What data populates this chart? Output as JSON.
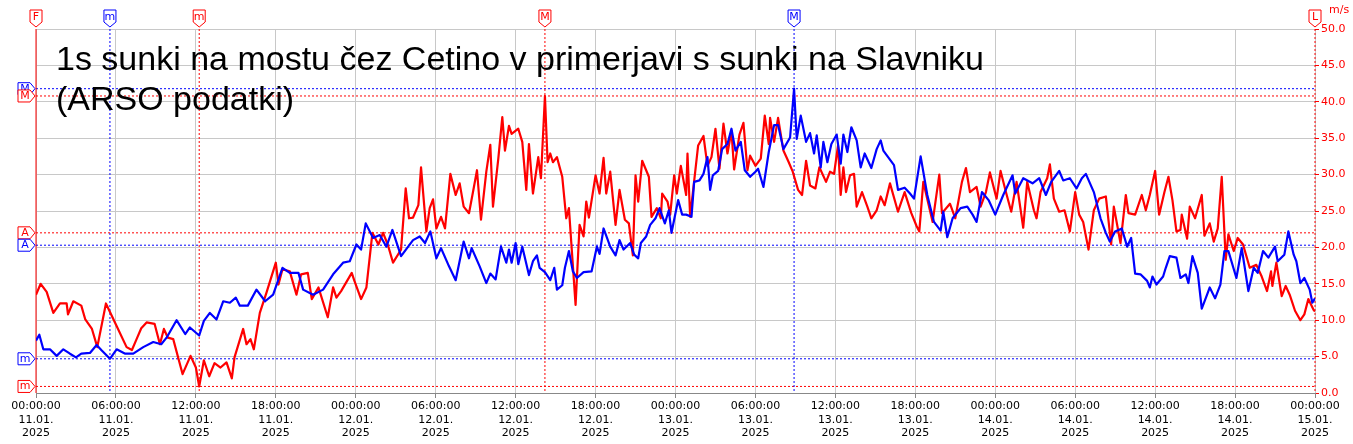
{
  "chart_data": {
    "type": "line",
    "title": "1s sunki na mostu čez Cetino v primerjavi s sunki na Slavniku (ARSO podatki)",
    "ylabel": "m/s",
    "xlim": [
      "2025-01-11T00:00",
      "2025-01-15T00:00"
    ],
    "xticks": [
      {
        "value": "2025-01-11T00:00",
        "label": "00:00:00\n11.01.\n2025"
      },
      {
        "value": "2025-01-11T06:00",
        "label": "06:00:00\n11.01.\n2025"
      },
      {
        "value": "2025-01-11T12:00",
        "label": "12:00:00\n11.01.\n2025"
      },
      {
        "value": "2025-01-11T18:00",
        "label": "18:00:00\n11.01.\n2025"
      },
      {
        "value": "2025-01-12T00:00",
        "label": "00:00:00\n12.01.\n2025"
      },
      {
        "value": "2025-01-12T06:00",
        "label": "06:00:00\n12.01.\n2025"
      },
      {
        "value": "2025-01-12T12:00",
        "label": "12:00:00\n12.01.\n2025"
      },
      {
        "value": "2025-01-12T18:00",
        "label": "18:00:00\n12.01.\n2025"
      },
      {
        "value": "2025-01-13T00:00",
        "label": "00:00:00\n13.01.\n2025"
      },
      {
        "value": "2025-01-13T06:00",
        "label": "06:00:00\n13.01.\n2025"
      },
      {
        "value": "2025-01-13T12:00",
        "label": "12:00:00\n13.01.\n2025"
      },
      {
        "value": "2025-01-13T18:00",
        "label": "18:00:00\n13.01.\n2025"
      },
      {
        "value": "2025-01-14T00:00",
        "label": "00:00:00\n14.01.\n2025"
      },
      {
        "value": "2025-01-14T06:00",
        "label": "06:00:00\n14.01.\n2025"
      },
      {
        "value": "2025-01-14T12:00",
        "label": "12:00:00\n14.01.\n2025"
      },
      {
        "value": "2025-01-14T18:00",
        "label": "18:00:00\n14.01.\n2025"
      },
      {
        "value": "2025-01-15T00:00",
        "label": "00:00:00\n15.01.\n2025"
      }
    ],
    "ylim": [
      0,
      50
    ],
    "yticks": [
      {
        "value": 0,
        "label": "0.0"
      },
      {
        "value": 5,
        "label": "5.0"
      },
      {
        "value": 10,
        "label": "10.0"
      },
      {
        "value": 15,
        "label": "15.0"
      },
      {
        "value": 20,
        "label": "20.0"
      },
      {
        "value": 25,
        "label": "25.0"
      },
      {
        "value": 30,
        "label": "30.0"
      },
      {
        "value": 35,
        "label": "35.0"
      },
      {
        "value": 40,
        "label": "40.0"
      },
      {
        "value": 45,
        "label": "45.0"
      },
      {
        "value": 50,
        "label": "50.0"
      }
    ],
    "grid": true,
    "line_style": "solid",
    "series": [
      {
        "color": "#0000ff",
        "x": [
          "2025-01-11T00:00",
          "2025-01-11T00:15",
          "2025-01-11T00:33",
          "2025-01-11T01:03",
          "2025-01-11T01:33",
          "2025-01-11T02:03",
          "2025-01-11T02:33",
          "2025-01-11T03:00",
          "2025-01-11T03:24",
          "2025-01-11T04:03",
          "2025-01-11T04:33",
          "2025-01-11T04:54",
          "2025-01-11T05:33",
          "2025-01-11T06:03",
          "2025-01-11T06:42",
          "2025-01-11T07:18",
          "2025-01-11T08:03",
          "2025-01-11T08:48",
          "2025-01-11T09:24",
          "2025-01-11T09:48",
          "2025-01-11T10:33",
          "2025-01-11T11:12",
          "2025-01-11T11:33",
          "2025-01-11T12:15",
          "2025-01-11T12:36",
          "2025-01-11T13:03",
          "2025-01-11T13:33",
          "2025-01-11T14:03",
          "2025-01-11T14:33",
          "2025-01-11T15:00",
          "2025-01-11T15:18",
          "2025-01-11T15:54",
          "2025-01-11T16:33",
          "2025-01-11T17:12",
          "2025-01-11T17:48",
          "2025-01-11T18:30",
          "2025-01-11T19:03",
          "2025-01-11T19:42",
          "2025-01-11T20:03",
          "2025-01-11T20:48",
          "2025-01-11T21:33",
          "2025-01-11T22:18",
          "2025-01-11T23:03",
          "2025-01-11T23:33",
          "2025-01-12T00:03",
          "2025-01-12T00:24",
          "2025-01-12T00:45",
          "2025-01-12T01:18",
          "2025-01-12T01:48",
          "2025-01-12T02:18",
          "2025-01-12T02:45",
          "2025-01-12T03:24",
          "2025-01-12T04:18",
          "2025-01-12T04:48",
          "2025-01-12T05:12",
          "2025-01-12T05:36",
          "2025-01-12T06:03",
          "2025-01-12T06:24",
          "2025-01-12T07:00",
          "2025-01-12T07:30",
          "2025-01-12T08:06",
          "2025-01-12T08:30",
          "2025-01-12T08:42",
          "2025-01-12T09:18",
          "2025-01-12T09:48",
          "2025-01-12T10:06",
          "2025-01-12T10:30",
          "2025-01-12T10:54",
          "2025-01-12T11:18",
          "2025-01-12T11:30",
          "2025-01-12T11:42",
          "2025-01-12T12:00",
          "2025-01-12T12:12",
          "2025-01-12T12:30",
          "2025-01-12T13:00",
          "2025-01-12T13:18",
          "2025-01-12T13:36",
          "2025-01-12T13:48",
          "2025-01-12T14:12",
          "2025-01-12T14:36",
          "2025-01-12T14:54",
          "2025-01-12T15:06",
          "2025-01-12T15:30",
          "2025-01-12T15:42",
          "2025-01-12T16:00",
          "2025-01-12T16:18",
          "2025-01-12T16:36",
          "2025-01-12T17:06",
          "2025-01-12T17:42",
          "2025-01-12T18:06",
          "2025-01-12T18:18",
          "2025-01-12T18:36",
          "2025-01-12T19:06",
          "2025-01-12T19:30",
          "2025-01-12T19:48",
          "2025-01-12T20:06",
          "2025-01-12T20:36",
          "2025-01-12T20:54",
          "2025-01-12T21:12",
          "2025-01-12T21:24",
          "2025-01-12T21:48",
          "2025-01-12T22:06",
          "2025-01-12T22:30",
          "2025-01-12T22:48",
          "2025-01-12T23:12",
          "2025-01-12T23:30",
          "2025-01-12T23:42",
          "2025-01-13T00:12",
          "2025-01-13T00:30",
          "2025-01-13T00:48",
          "2025-01-13T01:12",
          "2025-01-13T01:24",
          "2025-01-13T01:48",
          "2025-01-13T02:06",
          "2025-01-13T02:24",
          "2025-01-13T02:36",
          "2025-01-13T02:48",
          "2025-01-13T03:12",
          "2025-01-13T03:30",
          "2025-01-13T03:54",
          "2025-01-13T04:12",
          "2025-01-13T04:30",
          "2025-01-13T04:54",
          "2025-01-13T05:12",
          "2025-01-13T05:36",
          "2025-01-13T06:00",
          "2025-01-13T06:12",
          "2025-01-13T06:36",
          "2025-01-13T07:00",
          "2025-01-13T07:24",
          "2025-01-13T07:42",
          "2025-01-13T08:06",
          "2025-01-13T08:36",
          "2025-01-13T08:54",
          "2025-01-13T09:06",
          "2025-01-13T09:24",
          "2025-01-13T09:48",
          "2025-01-13T10:06",
          "2025-01-13T10:24",
          "2025-01-13T10:36",
          "2025-01-13T10:54",
          "2025-01-13T11:06",
          "2025-01-13T11:24",
          "2025-01-13T11:42",
          "2025-01-13T12:06",
          "2025-01-13T12:24",
          "2025-01-13T12:36",
          "2025-01-13T12:54",
          "2025-01-13T13:12",
          "2025-01-13T13:36",
          "2025-01-13T13:54",
          "2025-01-13T14:12",
          "2025-01-13T14:42",
          "2025-01-13T15:06",
          "2025-01-13T15:24",
          "2025-01-13T15:36",
          "2025-01-13T16:24",
          "2025-01-13T16:42",
          "2025-01-13T17:12",
          "2025-01-13T17:36",
          "2025-01-13T17:54",
          "2025-01-13T18:24",
          "2025-01-13T18:54",
          "2025-01-13T19:24",
          "2025-01-13T19:54",
          "2025-01-13T20:06",
          "2025-01-13T20:24",
          "2025-01-13T20:48",
          "2025-01-13T21:24",
          "2025-01-13T21:54",
          "2025-01-13T22:18",
          "2025-01-13T22:36",
          "2025-01-13T23:00",
          "2025-01-13T23:30",
          "2025-01-14T00:00",
          "2025-01-14T00:36",
          "2025-01-14T01:18",
          "2025-01-14T01:30",
          "2025-01-14T02:06",
          "2025-01-14T02:48",
          "2025-01-14T03:18",
          "2025-01-14T03:48",
          "2025-01-14T04:12",
          "2025-01-14T04:48",
          "2025-01-14T05:06",
          "2025-01-14T05:36",
          "2025-01-14T06:06",
          "2025-01-14T06:30",
          "2025-01-14T06:48",
          "2025-01-14T07:24",
          "2025-01-14T07:54",
          "2025-01-14T08:18",
          "2025-01-14T08:36",
          "2025-01-14T09:00",
          "2025-01-14T09:30",
          "2025-01-14T09:54",
          "2025-01-14T10:12",
          "2025-01-14T10:30",
          "2025-01-14T10:54",
          "2025-01-14T11:24",
          "2025-01-14T11:36",
          "2025-01-14T11:48",
          "2025-01-14T12:06",
          "2025-01-14T12:36",
          "2025-01-14T12:48",
          "2025-01-14T13:06",
          "2025-01-14T13:36",
          "2025-01-14T13:54",
          "2025-01-14T14:18",
          "2025-01-14T14:30",
          "2025-01-14T14:48",
          "2025-01-14T15:12",
          "2025-01-14T15:30",
          "2025-01-14T15:54",
          "2025-01-14T16:06",
          "2025-01-14T16:30",
          "2025-01-14T16:54",
          "2025-01-14T17:12",
          "2025-01-14T17:30",
          "2025-01-14T18:06",
          "2025-01-14T18:30",
          "2025-01-14T19:00",
          "2025-01-14T19:24",
          "2025-01-14T19:42",
          "2025-01-14T20:06",
          "2025-01-14T20:30",
          "2025-01-14T21:00",
          "2025-01-14T21:12",
          "2025-01-14T21:42",
          "2025-01-14T22:00",
          "2025-01-14T22:24",
          "2025-01-14T22:36",
          "2025-01-14T22:54",
          "2025-01-14T23:12",
          "2025-01-14T23:36",
          "2025-01-14T23:48",
          "2025-01-15T00:00"
        ],
        "values": [
          7.2,
          8.0,
          6.0,
          6.0,
          5.1,
          6.0,
          5.4,
          4.9,
          5.4,
          5.5,
          6.6,
          5.9,
          4.7,
          6.0,
          5.4,
          5.4,
          6.3,
          7.0,
          6.7,
          7.6,
          10.0,
          8.1,
          9.0,
          7.9,
          9.9,
          11.0,
          10.1,
          12.6,
          12.4,
          13.1,
          12.0,
          12.0,
          14.2,
          12.6,
          13.5,
          17.2,
          16.5,
          16.5,
          14.2,
          13.5,
          14.2,
          16.3,
          17.9,
          18.1,
          20.4,
          19.7,
          23.3,
          21.3,
          21.7,
          20.1,
          22.4,
          18.8,
          21.0,
          21.5,
          20.6,
          22.2,
          18.5,
          19.9,
          17.4,
          15.5,
          20.8,
          18.5,
          19.9,
          17.4,
          15.1,
          16.4,
          15.6,
          20.1,
          17.9,
          19.7,
          17.9,
          20.6,
          17.7,
          20.1,
          16.2,
          18.1,
          18.9,
          17.2,
          16.6,
          15.5,
          17.2,
          14.2,
          14.8,
          17.2,
          19.5,
          16.7,
          15.8,
          16.6,
          16.7,
          20.1,
          19.1,
          22.6,
          20.1,
          18.9,
          21.0,
          19.7,
          20.6,
          19.0,
          18.5,
          20.6,
          21.5,
          23.1,
          24.0,
          25.4,
          23.3,
          25.1,
          22.0,
          26.5,
          24.5,
          24.5,
          24.2,
          29.0,
          29.2,
          30.1,
          32.4,
          27.9,
          29.9,
          30.5,
          33.5,
          34.2,
          36.3,
          33.3,
          34.5,
          30.6,
          29.7,
          30.4,
          30.8,
          28.3,
          33.1,
          36.8,
          36.8,
          33.5,
          35.1,
          41.8,
          34.9,
          38.1,
          34.5,
          35.7,
          32.9,
          35.4,
          31.0,
          34.5,
          31.7,
          34.2,
          35.5,
          31.5,
          35.5,
          33.1,
          36.5,
          34.7,
          31.0,
          32.9,
          30.9,
          33.5,
          34.7,
          33.3,
          31.3,
          27.9,
          28.2,
          27.4,
          26.7,
          32.5,
          27.2,
          23.5,
          22.3,
          24.9,
          21.4,
          24.0,
          25.4,
          25.6,
          24.5,
          23.5,
          27.6,
          26.5,
          24.5,
          27.2,
          29.9,
          27.4,
          29.5,
          28.8,
          29.5,
          27.2,
          29.0,
          30.5,
          29.2,
          29.5,
          28.1,
          29.5,
          30.1,
          27.6,
          24.0,
          22.0,
          20.8,
          22.2,
          22.6,
          20.1,
          21.3,
          16.4,
          16.3,
          15.4,
          14.5,
          16.0,
          14.9,
          16.0,
          17.2,
          18.8,
          18.6,
          15.8,
          16.3,
          15.1,
          18.8,
          16.5,
          11.6,
          13.5,
          14.5,
          13.0,
          14.9,
          19.5,
          19.5,
          15.8,
          19.9,
          14.0,
          17.2,
          16.5,
          19.5,
          18.6,
          20.1,
          18.1,
          19.0,
          22.2,
          19.0,
          18.1,
          15.1,
          15.8,
          14.2,
          12.4,
          13.0
        ]
      },
      {
        "color": "#ff0000",
        "x": [
          "2025-01-11T00:00",
          "2025-01-11T00:21",
          "2025-01-11T00:48",
          "2025-01-11T01:18",
          "2025-01-11T01:48",
          "2025-01-11T02:18",
          "2025-01-11T02:24",
          "2025-01-11T02:48",
          "2025-01-11T03:24",
          "2025-01-11T03:42",
          "2025-01-11T04:12",
          "2025-01-11T04:36",
          "2025-01-11T05:15",
          "2025-01-11T06:03",
          "2025-01-11T06:48",
          "2025-01-11T07:12",
          "2025-01-11T07:33",
          "2025-01-11T07:54",
          "2025-01-11T08:18",
          "2025-01-11T08:54",
          "2025-01-11T09:18",
          "2025-01-11T09:36",
          "2025-01-11T09:54",
          "2025-01-11T10:18",
          "2025-01-11T11:00",
          "2025-01-11T11:36",
          "2025-01-11T12:00",
          "2025-01-11T12:15",
          "2025-01-11T12:36",
          "2025-01-11T13:00",
          "2025-01-11T13:24",
          "2025-01-11T13:51",
          "2025-01-11T14:18",
          "2025-01-11T14:42",
          "2025-01-11T14:54",
          "2025-01-11T15:33",
          "2025-01-11T15:48",
          "2025-01-11T16:06",
          "2025-01-11T16:21",
          "2025-01-11T16:48",
          "2025-01-11T17:18",
          "2025-01-11T18:00",
          "2025-01-11T18:12",
          "2025-01-11T18:30",
          "2025-01-11T19:03",
          "2025-01-11T19:33",
          "2025-01-11T19:54",
          "2025-01-11T20:24",
          "2025-01-11T20:42",
          "2025-01-11T21:12",
          "2025-01-11T21:54",
          "2025-01-11T22:18",
          "2025-01-11T22:33",
          "2025-01-11T22:54",
          "2025-01-11T23:42",
          "2025-01-11T23:54",
          "2025-01-12T00:24",
          "2025-01-12T00:48",
          "2025-01-12T01:15",
          "2025-01-12T01:42",
          "2025-01-12T02:03",
          "2025-01-12T02:24",
          "2025-01-12T02:48",
          "2025-01-12T03:24",
          "2025-01-12T03:45",
          "2025-01-12T04:00",
          "2025-01-12T04:18",
          "2025-01-12T04:42",
          "2025-01-12T04:54",
          "2025-01-12T05:18",
          "2025-01-12T05:33",
          "2025-01-12T05:48",
          "2025-01-12T06:03",
          "2025-01-12T06:24",
          "2025-01-12T06:42",
          "2025-01-12T07:06",
          "2025-01-12T07:30",
          "2025-01-12T07:48",
          "2025-01-12T08:06",
          "2025-01-12T08:30",
          "2025-01-12T08:48",
          "2025-01-12T09:06",
          "2025-01-12T09:24",
          "2025-01-12T09:48",
          "2025-01-12T10:06",
          "2025-01-12T10:18",
          "2025-01-12T10:42",
          "2025-01-12T11:00",
          "2025-01-12T11:12",
          "2025-01-12T11:30",
          "2025-01-12T11:42",
          "2025-01-12T12:12",
          "2025-01-12T12:30",
          "2025-01-12T12:48",
          "2025-01-12T13:00",
          "2025-01-12T13:18",
          "2025-01-12T13:42",
          "2025-01-12T13:54",
          "2025-01-12T14:12",
          "2025-01-12T14:24",
          "2025-01-12T14:36",
          "2025-01-12T14:48",
          "2025-01-12T15:06",
          "2025-01-12T15:30",
          "2025-01-12T15:48",
          "2025-01-12T16:00",
          "2025-01-12T16:30",
          "2025-01-12T16:48",
          "2025-01-12T17:06",
          "2025-01-12T17:18",
          "2025-01-12T17:30",
          "2025-01-12T18:00",
          "2025-01-12T18:18",
          "2025-01-12T18:36",
          "2025-01-12T18:48",
          "2025-01-12T19:06",
          "2025-01-12T19:30",
          "2025-01-12T19:48",
          "2025-01-12T20:12",
          "2025-01-12T20:30",
          "2025-01-12T20:48",
          "2025-01-12T21:00",
          "2025-01-12T21:12",
          "2025-01-12T21:30",
          "2025-01-12T22:00",
          "2025-01-12T22:12",
          "2025-01-12T22:36",
          "2025-01-12T22:54",
          "2025-01-12T23:00",
          "2025-01-12T23:24",
          "2025-01-12T23:36",
          "2025-01-12T23:54",
          "2025-01-13T00:06",
          "2025-01-13T00:24",
          "2025-01-13T00:48",
          "2025-01-13T00:54",
          "2025-01-13T01:06",
          "2025-01-13T01:42",
          "2025-01-13T02:06",
          "2025-01-13T02:24",
          "2025-01-13T02:42",
          "2025-01-13T03:00",
          "2025-01-13T03:18",
          "2025-01-13T03:36",
          "2025-01-13T03:54",
          "2025-01-13T04:12",
          "2025-01-13T04:24",
          "2025-01-13T04:48",
          "2025-01-13T05:06",
          "2025-01-13T05:24",
          "2025-01-13T05:36",
          "2025-01-13T06:00",
          "2025-01-13T06:24",
          "2025-01-13T06:42",
          "2025-01-13T07:00",
          "2025-01-13T07:06",
          "2025-01-13T07:24",
          "2025-01-13T07:42",
          "2025-01-13T08:06",
          "2025-01-13T08:30",
          "2025-01-13T08:48",
          "2025-01-13T09:12",
          "2025-01-13T09:30",
          "2025-01-13T09:48",
          "2025-01-13T10:06",
          "2025-01-13T10:30",
          "2025-01-13T10:48",
          "2025-01-13T11:18",
          "2025-01-13T11:36",
          "2025-01-13T11:54",
          "2025-01-13T12:12",
          "2025-01-13T12:24",
          "2025-01-13T12:36",
          "2025-01-13T12:48",
          "2025-01-13T13:06",
          "2025-01-13T13:24",
          "2025-01-13T13:36",
          "2025-01-13T14:00",
          "2025-01-13T14:24",
          "2025-01-13T14:42",
          "2025-01-13T15:06",
          "2025-01-13T15:24",
          "2025-01-13T15:42",
          "2025-01-13T16:06",
          "2025-01-13T16:42",
          "2025-01-13T17:12",
          "2025-01-13T17:42",
          "2025-01-13T18:06",
          "2025-01-13T18:18",
          "2025-01-13T18:36",
          "2025-01-13T19:18",
          "2025-01-13T19:48",
          "2025-01-13T20:00",
          "2025-01-13T20:36",
          "2025-01-13T21:00",
          "2025-01-13T21:30",
          "2025-01-13T21:48",
          "2025-01-13T22:06",
          "2025-01-13T22:36",
          "2025-01-13T22:54",
          "2025-01-13T23:18",
          "2025-01-13T23:36",
          "2025-01-14T00:06",
          "2025-01-14T00:24",
          "2025-01-14T00:48",
          "2025-01-14T01:12",
          "2025-01-14T01:36",
          "2025-01-14T02:06",
          "2025-01-14T02:24",
          "2025-01-14T02:54",
          "2025-01-14T03:06",
          "2025-01-14T03:24",
          "2025-01-14T03:54",
          "2025-01-14T04:06",
          "2025-01-14T04:24",
          "2025-01-14T04:48",
          "2025-01-14T05:12",
          "2025-01-14T05:36",
          "2025-01-14T06:00",
          "2025-01-14T06:18",
          "2025-01-14T06:36",
          "2025-01-14T07:00",
          "2025-01-14T07:24",
          "2025-01-14T07:48",
          "2025-01-14T08:18",
          "2025-01-14T08:42",
          "2025-01-14T08:54",
          "2025-01-14T09:12",
          "2025-01-14T09:24",
          "2025-01-14T09:48",
          "2025-01-14T10:00",
          "2025-01-14T10:30",
          "2025-01-14T11:00",
          "2025-01-14T11:18",
          "2025-01-14T11:36",
          "2025-01-14T12:00",
          "2025-01-14T12:18",
          "2025-01-14T12:42",
          "2025-01-14T13:00",
          "2025-01-14T13:18",
          "2025-01-14T13:36",
          "2025-01-14T13:54",
          "2025-01-14T14:00",
          "2025-01-14T14:24",
          "2025-01-14T14:36",
          "2025-01-14T15:00",
          "2025-01-14T15:30",
          "2025-01-14T15:42",
          "2025-01-14T16:06",
          "2025-01-14T16:24",
          "2025-01-14T16:42",
          "2025-01-14T17:00",
          "2025-01-14T17:18",
          "2025-01-14T17:30",
          "2025-01-14T17:54",
          "2025-01-14T18:12",
          "2025-01-14T18:36",
          "2025-01-14T19:06",
          "2025-01-14T19:36",
          "2025-01-14T20:00",
          "2025-01-14T20:24",
          "2025-01-14T20:42",
          "2025-01-14T20:48",
          "2025-01-14T21:06",
          "2025-01-14T21:30",
          "2025-01-14T21:48",
          "2025-01-14T22:06",
          "2025-01-14T22:30",
          "2025-01-14T22:54",
          "2025-01-14T23:12",
          "2025-01-14T23:30",
          "2025-01-14T23:54",
          "2025-01-15T00:00"
        ],
        "values": [
          13.5,
          15.0,
          13.9,
          11.0,
          12.3,
          12.3,
          10.8,
          12.6,
          12.0,
          10.1,
          8.8,
          6.3,
          12.3,
          9.2,
          6.3,
          5.9,
          7.4,
          8.9,
          9.7,
          9.5,
          6.7,
          8.8,
          7.6,
          7.4,
          2.6,
          5.1,
          3.5,
          0.9,
          4.5,
          2.3,
          4.1,
          3.5,
          4.2,
          2.0,
          4.9,
          8.8,
          6.7,
          7.4,
          6.0,
          11.0,
          13.8,
          17.9,
          14.9,
          17.0,
          16.7,
          13.5,
          16.3,
          16.5,
          12.9,
          14.5,
          10.4,
          14.5,
          13.1,
          14.0,
          16.5,
          15.4,
          12.9,
          14.5,
          22.0,
          20.4,
          22.0,
          20.4,
          17.9,
          19.7,
          28.1,
          24.0,
          24.1,
          25.8,
          31.0,
          22.2,
          25.4,
          26.6,
          22.6,
          24.2,
          22.6,
          30.1,
          27.2,
          28.8,
          25.6,
          24.7,
          27.6,
          30.6,
          23.8,
          30.4,
          34.1,
          25.6,
          32.2,
          37.9,
          33.3,
          36.7,
          35.6,
          36.3,
          34.5,
          27.9,
          34.2,
          27.4,
          32.4,
          29.5,
          40.8,
          31.7,
          32.9,
          31.7,
          32.4,
          29.7,
          24.0,
          25.4,
          12.1,
          23.1,
          21.5,
          26.3,
          24.1,
          29.9,
          27.4,
          32.3,
          27.4,
          30.4,
          23.1,
          27.9,
          23.8,
          23.3,
          18.9,
          29.9,
          26.3,
          31.9,
          29.7,
          24.2,
          25.4,
          24.0,
          27.4,
          26.3,
          24.5,
          29.9,
          27.4,
          31.2,
          27.2,
          32.9,
          24.2,
          34.0,
          35.3,
          31.2,
          32.4,
          36.3,
          30.8,
          37.0,
          32.9,
          36.0,
          30.7,
          35.5,
          37.1,
          30.6,
          32.6,
          31.2,
          32.2,
          38.1,
          34.2,
          37.8,
          34.5,
          37.8,
          33.3,
          31.7,
          30.4,
          27.9,
          27.2,
          31.9,
          28.5,
          28.1,
          31.0,
          29.0,
          30.4,
          30.1,
          34.0,
          27.2,
          31.0,
          27.6,
          29.9,
          30.1,
          25.6,
          27.6,
          25.6,
          24.0,
          25.1,
          27.0,
          25.8,
          28.8,
          24.9,
          27.6,
          24.7,
          22.9,
          22.2,
          29.0,
          23.5,
          30.0,
          24.7,
          26.0,
          24.0,
          29.0,
          30.9,
          27.6,
          28.3,
          25.6,
          27.6,
          30.3,
          26.7,
          30.5,
          27.6,
          24.9,
          29.0,
          22.7,
          29.0,
          25.1,
          24.0,
          27.6,
          29.5,
          31.4,
          26.7,
          24.9,
          25.1,
          22.2,
          27.6,
          24.5,
          23.5,
          19.7,
          25.1,
          26.7,
          27.0,
          20.4,
          25.6,
          22.6,
          20.6,
          27.2,
          24.7,
          24.5,
          27.2,
          25.1,
          27.2,
          30.5,
          24.5,
          27.6,
          29.7,
          26.5,
          22.2,
          22.4,
          24.5,
          21.2,
          25.6,
          24.0,
          27.2,
          21.6,
          23.3,
          20.8,
          22.6,
          29.7,
          18.3,
          21.8,
          19.5,
          21.3,
          20.4,
          17.2,
          17.6,
          16.0,
          14.0,
          16.7,
          14.7,
          17.9,
          13.3,
          14.7,
          13.5,
          11.3,
          10.0,
          10.8,
          12.9,
          11.4,
          11.2
        ]
      }
    ],
    "ref_lines": [
      {
        "axis": "y",
        "value": 41.8,
        "label": "M",
        "color": "#0000ff",
        "line_style": "dotted"
      },
      {
        "axis": "y",
        "value": 40.8,
        "label": "M",
        "color": "#ff0000",
        "line_style": "dotted"
      },
      {
        "axis": "y",
        "value": 22.0,
        "label": "A",
        "color": "#ff0000",
        "line_style": "dotted"
      },
      {
        "axis": "y",
        "value": 20.3,
        "label": "A",
        "color": "#0000ff",
        "line_style": "dotted"
      },
      {
        "axis": "y",
        "value": 4.7,
        "label": "m",
        "color": "#0000ff",
        "line_style": "dotted"
      },
      {
        "axis": "y",
        "value": 0.9,
        "label": "m",
        "color": "#ff0000",
        "line_style": "dotted"
      },
      {
        "axis": "x",
        "value": "2025-01-11T00:00",
        "label": "F",
        "color": "#ff0000",
        "line_style": "solid"
      },
      {
        "axis": "x",
        "value": "2025-01-11T05:33",
        "label": "m",
        "color": "#0000ff",
        "line_style": "dotted"
      },
      {
        "axis": "x",
        "value": "2025-01-11T12:15",
        "label": "m",
        "color": "#ff0000",
        "line_style": "dotted"
      },
      {
        "axis": "x",
        "value": "2025-01-12T14:12",
        "label": "M",
        "color": "#ff0000",
        "line_style": "dotted"
      },
      {
        "axis": "x",
        "value": "2025-01-13T08:54",
        "label": "M",
        "color": "#0000ff",
        "line_style": "dotted"
      },
      {
        "axis": "x",
        "value": "2025-01-15T00:00",
        "label": "L",
        "color": "#ff0000",
        "line_style": "dotted"
      }
    ]
  }
}
